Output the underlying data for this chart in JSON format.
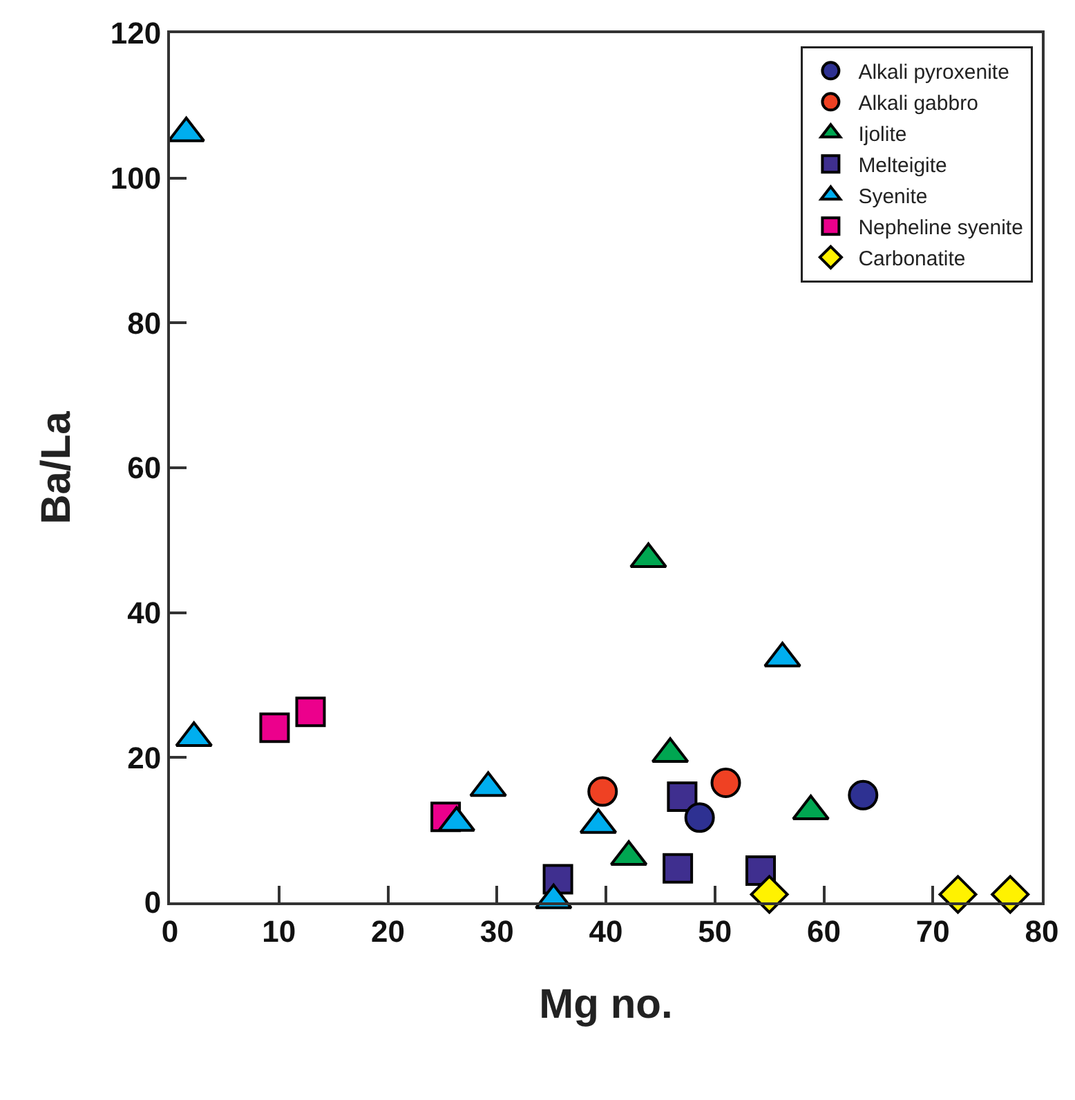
{
  "chart_data": {
    "type": "scatter",
    "xlabel": "Mg no.",
    "ylabel": "Ba/La",
    "xlim": [
      0,
      80
    ],
    "ylim": [
      0,
      120
    ],
    "xticks": [
      0,
      10,
      20,
      30,
      40,
      50,
      60,
      70,
      80
    ],
    "yticks": [
      0,
      20,
      40,
      60,
      80,
      100,
      120
    ],
    "legend": "top right",
    "series": [
      {
        "name": "Alkali pyroxenite",
        "color": "#2e3192",
        "marker": "circle",
        "x": [
          48.6,
          63.6
        ],
        "values": [
          11.7,
          14.8
        ]
      },
      {
        "name": "Alkali gabbro",
        "color": "#ef4123",
        "marker": "circle",
        "x": [
          39.7,
          51.0
        ],
        "values": [
          15.3,
          16.5
        ]
      },
      {
        "name": "Ijolite",
        "color": "#00a651",
        "marker": "triangle",
        "x": [
          43.9,
          45.9,
          42.1,
          58.8
        ],
        "values": [
          47.4,
          20.5,
          6.3,
          12.6
        ]
      },
      {
        "name": "Melteigite",
        "color": "#3f2f8f",
        "marker": "square",
        "x": [
          35.6,
          47.0,
          46.6,
          54.2
        ],
        "values": [
          3.2,
          14.6,
          4.7,
          4.4
        ]
      },
      {
        "name": "Syenite",
        "color": "#00aeef",
        "marker": "triangle",
        "x": [
          1.5,
          2.2,
          26.3,
          29.2,
          39.3,
          56.2,
          35.2
        ],
        "values": [
          106.2,
          22.7,
          11.0,
          15.8,
          10.7,
          33.7,
          0.3
        ]
      },
      {
        "name": "Nepheline syenite",
        "color": "#ec008c",
        "marker": "square",
        "x": [
          9.6,
          12.9,
          25.3
        ],
        "values": [
          24.1,
          26.3,
          11.8
        ]
      },
      {
        "name": "Carbonatite",
        "color": "#fff200",
        "marker": "diamond",
        "x": [
          55.0,
          72.3,
          77.1
        ],
        "values": [
          1.1,
          1.1,
          1.1
        ]
      }
    ]
  }
}
